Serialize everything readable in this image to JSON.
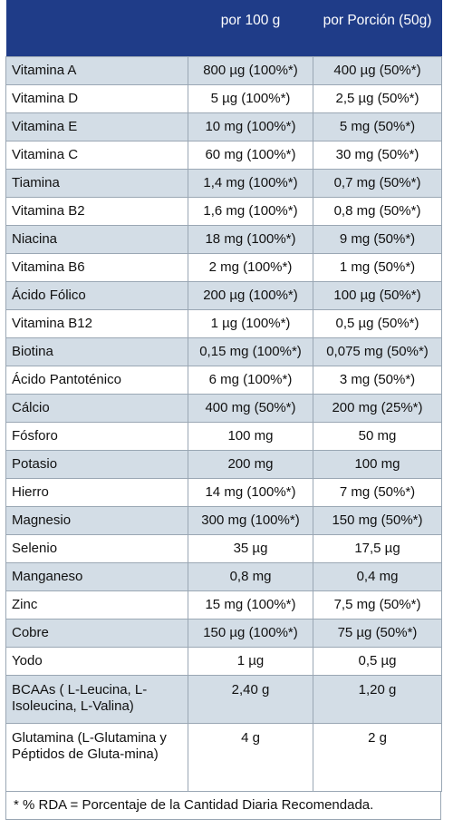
{
  "header": {
    "col1": "",
    "col2": "por 100 g",
    "col3": "por Porción (50g)"
  },
  "rows": [
    {
      "name": "Vitamina A",
      "per100": "800 µg (100%*)",
      "perServing": "400 µg (50%*)"
    },
    {
      "name": "Vitamina D",
      "per100": "5 µg (100%*)",
      "perServing": "2,5 µg (50%*)"
    },
    {
      "name": "Vitamina E",
      "per100": "10 mg (100%*)",
      "perServing": "5 mg (50%*)"
    },
    {
      "name": "Vitamina C",
      "per100": "60 mg (100%*)",
      "perServing": "30 mg (50%*)"
    },
    {
      "name": "Tiamina",
      "per100": "1,4 mg (100%*)",
      "perServing": "0,7 mg (50%*)"
    },
    {
      "name": "Vitamina B2",
      "per100": "1,6 mg (100%*)",
      "perServing": "0,8 mg (50%*)"
    },
    {
      "name": "Niacina",
      "per100": "18 mg (100%*)",
      "perServing": "9 mg (50%*)"
    },
    {
      "name": "Vitamina B6",
      "per100": "2 mg (100%*)",
      "perServing": "1 mg (50%*)"
    },
    {
      "name": "Ácido Fólico",
      "per100": "200  µg (100%*)",
      "perServing": "100 µg (50%*)"
    },
    {
      "name": "Vitamina B12",
      "per100": "1 µg (100%*)",
      "perServing": "0,5 µg (50%*)"
    },
    {
      "name": "Biotina",
      "per100": "0,15 mg (100%*)",
      "perServing": "0,075 mg (50%*)"
    },
    {
      "name": "Ácido Pantoténico",
      "per100": "6 mg (100%*)",
      "perServing": "3 mg (50%*)"
    },
    {
      "name": "Cálcio",
      "per100": "400 mg (50%*)",
      "perServing": "200 mg (25%*)"
    },
    {
      "name": "Fósforo",
      "per100": "100 mg",
      "perServing": "50 mg"
    },
    {
      "name": "Potasio",
      "per100": "200 mg",
      "perServing": "100 mg"
    },
    {
      "name": "Hierro",
      "per100": "14 mg (100%*)",
      "perServing": "7 mg (50%*)"
    },
    {
      "name": "Magnesio",
      "per100": "300 mg (100%*)",
      "perServing": "150 mg (50%*)"
    },
    {
      "name": "Selenio",
      "per100": "35 µg",
      "perServing": "17,5 µg"
    },
    {
      "name": "Manganeso",
      "per100": "0,8 mg",
      "perServing": "0,4 mg"
    },
    {
      "name": "Zinc",
      "per100": "15 mg (100%*)",
      "perServing": "7,5 mg (50%*)"
    },
    {
      "name": "Cobre",
      "per100": "150 µg (100%*)",
      "perServing": "75 µg (50%*)"
    },
    {
      "name": "Yodo",
      "per100": "1 µg",
      "perServing": "0,5 µg"
    },
    {
      "name": "BCAAs ( L-Leucina, L-Isoleucina, L-Valina)",
      "per100": "2,40 g",
      "perServing": "1,20 g"
    },
    {
      "name": "Glutamina (L-Glutamina y Péptidos de Gluta-mina)",
      "per100": "4 g",
      "perServing": "2 g"
    }
  ],
  "footnote": "* % RDA = Porcentaje de la Cantidad Diaria Recomendada."
}
